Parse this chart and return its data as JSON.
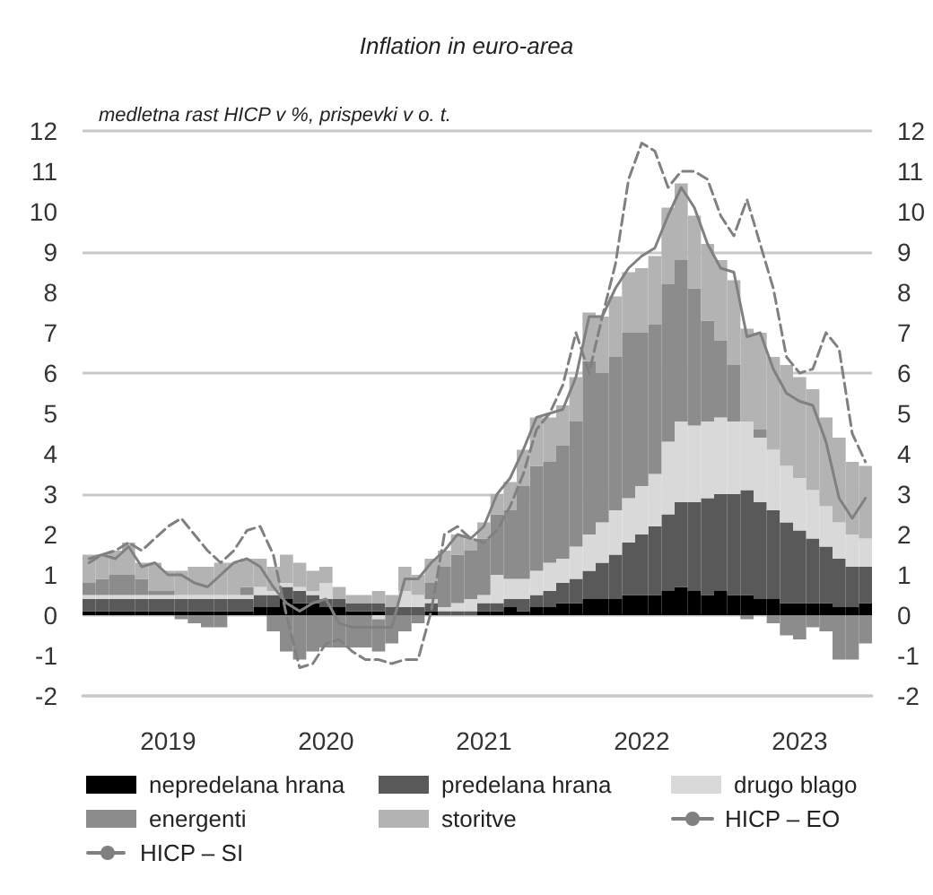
{
  "chart_data": {
    "type": "bar",
    "stacked": true,
    "title": "Inflation in euro-area",
    "subtitle": "medletna rast HICP v %, prispevki v o. t.",
    "categories": [
      null,
      null,
      null,
      null,
      null,
      null,
      "2019",
      null,
      null,
      null,
      null,
      null,
      null,
      null,
      null,
      null,
      null,
      null,
      "2020",
      null,
      null,
      null,
      null,
      null,
      null,
      null,
      null,
      null,
      null,
      null,
      "2021",
      null,
      null,
      null,
      null,
      null,
      null,
      null,
      null,
      null,
      null,
      null,
      "2022",
      null,
      null,
      null,
      null,
      null,
      null,
      null,
      null,
      null,
      null,
      null,
      "2023",
      null,
      null,
      null,
      null,
      null
    ],
    "series": [
      {
        "name": "nepredelana hrana",
        "color": "#000000",
        "values": [
          0.1,
          0.1,
          0.1,
          0.1,
          0.1,
          0.1,
          0.1,
          0.1,
          0.1,
          0.1,
          0.1,
          0.1,
          0.1,
          0.2,
          0.2,
          0.4,
          0.3,
          0.3,
          0.2,
          0.2,
          0.1,
          0.1,
          0.1,
          0.0,
          0.0,
          0.0,
          0.1,
          0.0,
          0.0,
          0.0,
          0.1,
          0.1,
          0.2,
          0.1,
          0.2,
          0.2,
          0.3,
          0.3,
          0.4,
          0.4,
          0.4,
          0.5,
          0.5,
          0.5,
          0.6,
          0.7,
          0.6,
          0.5,
          0.6,
          0.5,
          0.5,
          0.4,
          0.4,
          0.3,
          0.3,
          0.3,
          0.3,
          0.2,
          0.2,
          0.3
        ]
      },
      {
        "name": "predelana hrana",
        "color": "#595959",
        "values": [
          0.3,
          0.3,
          0.3,
          0.3,
          0.3,
          0.3,
          0.3,
          0.3,
          0.3,
          0.3,
          0.3,
          0.3,
          0.3,
          0.3,
          0.3,
          0.3,
          0.3,
          0.2,
          0.2,
          0.2,
          0.2,
          0.2,
          0.2,
          0.2,
          0.2,
          0.2,
          0.2,
          0.1,
          0.1,
          0.1,
          0.2,
          0.2,
          0.2,
          0.3,
          0.3,
          0.4,
          0.5,
          0.6,
          0.7,
          0.9,
          1.1,
          1.3,
          1.5,
          1.7,
          1.9,
          2.1,
          2.2,
          2.4,
          2.4,
          2.5,
          2.6,
          2.4,
          2.2,
          2.0,
          1.8,
          1.6,
          1.4,
          1.2,
          1.0,
          0.9
        ]
      },
      {
        "name": "drugo blago",
        "color": "#d9d9d9",
        "values": [
          0.1,
          0.1,
          0.1,
          0.1,
          0.1,
          0.1,
          0.1,
          0.1,
          0.1,
          0.1,
          0.1,
          0.1,
          0.1,
          0.2,
          0.1,
          0.1,
          0.1,
          0.1,
          0.4,
          0.0,
          0.0,
          0.0,
          -0.1,
          0.0,
          0.4,
          0.3,
          0.1,
          0.1,
          0.2,
          0.3,
          0.2,
          0.7,
          0.5,
          0.5,
          0.6,
          0.7,
          0.6,
          0.8,
          0.9,
          1.0,
          1.1,
          1.1,
          1.2,
          1.3,
          1.8,
          2.0,
          1.9,
          1.9,
          1.9,
          1.8,
          1.7,
          1.6,
          1.5,
          1.4,
          1.3,
          1.2,
          1.0,
          0.9,
          0.8,
          0.7
        ]
      },
      {
        "name": "energenti",
        "color": "#8c8c8c",
        "values": [
          0.3,
          0.4,
          0.5,
          0.5,
          0.4,
          0.1,
          0.1,
          -0.1,
          -0.2,
          -0.3,
          -0.3,
          0.0,
          0.2,
          0.0,
          -0.4,
          -0.9,
          -1.1,
          -0.9,
          -0.8,
          -0.8,
          -0.8,
          -0.8,
          -0.8,
          -0.7,
          -0.4,
          -0.2,
          0.4,
          1.0,
          1.2,
          1.2,
          1.4,
          1.5,
          1.7,
          2.3,
          2.6,
          2.5,
          2.8,
          3.1,
          4.3,
          3.7,
          3.8,
          4.1,
          3.8,
          3.7,
          3.9,
          4.0,
          3.4,
          2.5,
          1.9,
          1.4,
          -0.1,
          0.2,
          -0.2,
          -0.5,
          -0.6,
          -0.3,
          -0.4,
          -1.1,
          -1.1,
          -0.7
        ]
      },
      {
        "name": "storitve",
        "color": "#b3b3b3",
        "values": [
          0.7,
          0.6,
          0.6,
          0.8,
          0.4,
          0.7,
          0.5,
          0.6,
          0.7,
          0.7,
          0.8,
          0.8,
          0.7,
          0.7,
          0.6,
          0.7,
          0.6,
          0.5,
          0.4,
          0.3,
          0.2,
          0.2,
          0.3,
          0.3,
          0.6,
          0.5,
          0.6,
          0.4,
          0.5,
          0.3,
          0.4,
          0.5,
          0.7,
          0.9,
          1.2,
          1.1,
          1.0,
          1.1,
          1.2,
          1.4,
          1.5,
          1.5,
          1.6,
          1.7,
          1.9,
          1.9,
          1.8,
          1.9,
          2.0,
          2.1,
          2.3,
          2.4,
          2.3,
          2.5,
          2.5,
          2.5,
          2.2,
          2.1,
          1.8,
          1.8
        ]
      },
      {
        "name": "HICP – EO",
        "type": "line",
        "color": "#808080",
        "line_style": "solid",
        "values": [
          1.4,
          1.5,
          1.4,
          1.7,
          1.2,
          1.3,
          1.0,
          1.0,
          0.8,
          0.7,
          1.0,
          1.3,
          1.4,
          1.2,
          0.7,
          0.3,
          0.1,
          0.3,
          0.4,
          -0.2,
          -0.3,
          -0.3,
          -0.3,
          -0.3,
          0.9,
          0.9,
          1.3,
          1.6,
          2.0,
          1.9,
          2.2,
          3.0,
          3.4,
          4.1,
          4.9,
          5.0,
          5.1,
          5.9,
          7.4,
          7.4,
          8.1,
          8.6,
          8.9,
          9.1,
          9.9,
          10.6,
          10.1,
          9.2,
          8.6,
          8.5,
          6.9,
          7.0,
          6.1,
          5.5,
          5.3,
          5.2,
          4.3,
          2.9,
          2.4,
          2.9
        ]
      },
      {
        "name": "HICP – SI",
        "type": "line",
        "color": "#808080",
        "line_style": "dashed",
        "values": [
          1.3,
          1.5,
          1.6,
          1.8,
          1.6,
          1.9,
          2.2,
          2.4,
          2.0,
          1.6,
          1.3,
          1.6,
          2.1,
          2.2,
          1.5,
          0.0,
          -1.3,
          -1.2,
          -0.7,
          -0.6,
          -0.9,
          -1.1,
          -1.1,
          -1.2,
          -1.1,
          -1.1,
          0.1,
          2.0,
          2.2,
          1.9,
          1.8,
          2.1,
          2.7,
          3.5,
          4.6,
          5.0,
          5.7,
          7.0,
          6.0,
          7.4,
          8.7,
          10.8,
          11.7,
          11.5,
          10.6,
          11.0,
          11.0,
          10.8,
          9.9,
          9.4,
          10.3,
          9.2,
          8.1,
          6.4,
          6.0,
          6.1,
          7.0,
          6.6,
          4.5,
          3.8
        ]
      }
    ],
    "ylim": [
      -2,
      12
    ],
    "yticks": [
      -2,
      -1,
      0,
      1,
      2,
      3,
      4,
      5,
      6,
      7,
      8,
      9,
      10,
      11,
      12
    ],
    "y2lim": [
      -2,
      12
    ],
    "y2ticks": [
      -2,
      -1,
      0,
      1,
      2,
      3,
      4,
      5,
      6,
      7,
      8,
      9,
      10,
      11,
      12
    ],
    "grid": "y",
    "legend": "bottom"
  }
}
